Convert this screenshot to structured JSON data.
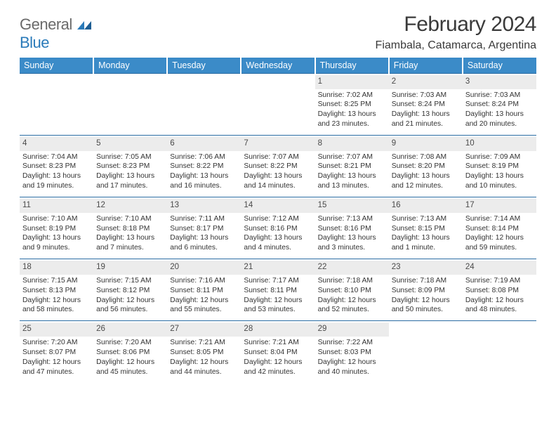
{
  "logo": {
    "text_general": "General",
    "text_blue": "Blue"
  },
  "title": "February 2024",
  "location": "Fiambala, Catamarca, Argentina",
  "weekdays": [
    "Sunday",
    "Monday",
    "Tuesday",
    "Wednesday",
    "Thursday",
    "Friday",
    "Saturday"
  ],
  "colors": {
    "header_bg": "#3b8bc8",
    "header_text": "#ffffff",
    "daynum_bg": "#ececec",
    "text": "#333333",
    "rule": "#2a6ca3",
    "logo_gray": "#6a6a6a",
    "logo_blue": "#2a7ab9"
  },
  "weeks": [
    [
      null,
      null,
      null,
      null,
      {
        "n": "1",
        "sr": "Sunrise: 7:02 AM",
        "ss": "Sunset: 8:25 PM",
        "d1": "Daylight: 13 hours",
        "d2": "and 23 minutes."
      },
      {
        "n": "2",
        "sr": "Sunrise: 7:03 AM",
        "ss": "Sunset: 8:24 PM",
        "d1": "Daylight: 13 hours",
        "d2": "and 21 minutes."
      },
      {
        "n": "3",
        "sr": "Sunrise: 7:03 AM",
        "ss": "Sunset: 8:24 PM",
        "d1": "Daylight: 13 hours",
        "d2": "and 20 minutes."
      }
    ],
    [
      {
        "n": "4",
        "sr": "Sunrise: 7:04 AM",
        "ss": "Sunset: 8:23 PM",
        "d1": "Daylight: 13 hours",
        "d2": "and 19 minutes."
      },
      {
        "n": "5",
        "sr": "Sunrise: 7:05 AM",
        "ss": "Sunset: 8:23 PM",
        "d1": "Daylight: 13 hours",
        "d2": "and 17 minutes."
      },
      {
        "n": "6",
        "sr": "Sunrise: 7:06 AM",
        "ss": "Sunset: 8:22 PM",
        "d1": "Daylight: 13 hours",
        "d2": "and 16 minutes."
      },
      {
        "n": "7",
        "sr": "Sunrise: 7:07 AM",
        "ss": "Sunset: 8:22 PM",
        "d1": "Daylight: 13 hours",
        "d2": "and 14 minutes."
      },
      {
        "n": "8",
        "sr": "Sunrise: 7:07 AM",
        "ss": "Sunset: 8:21 PM",
        "d1": "Daylight: 13 hours",
        "d2": "and 13 minutes."
      },
      {
        "n": "9",
        "sr": "Sunrise: 7:08 AM",
        "ss": "Sunset: 8:20 PM",
        "d1": "Daylight: 13 hours",
        "d2": "and 12 minutes."
      },
      {
        "n": "10",
        "sr": "Sunrise: 7:09 AM",
        "ss": "Sunset: 8:19 PM",
        "d1": "Daylight: 13 hours",
        "d2": "and 10 minutes."
      }
    ],
    [
      {
        "n": "11",
        "sr": "Sunrise: 7:10 AM",
        "ss": "Sunset: 8:19 PM",
        "d1": "Daylight: 13 hours",
        "d2": "and 9 minutes."
      },
      {
        "n": "12",
        "sr": "Sunrise: 7:10 AM",
        "ss": "Sunset: 8:18 PM",
        "d1": "Daylight: 13 hours",
        "d2": "and 7 minutes."
      },
      {
        "n": "13",
        "sr": "Sunrise: 7:11 AM",
        "ss": "Sunset: 8:17 PM",
        "d1": "Daylight: 13 hours",
        "d2": "and 6 minutes."
      },
      {
        "n": "14",
        "sr": "Sunrise: 7:12 AM",
        "ss": "Sunset: 8:16 PM",
        "d1": "Daylight: 13 hours",
        "d2": "and 4 minutes."
      },
      {
        "n": "15",
        "sr": "Sunrise: 7:13 AM",
        "ss": "Sunset: 8:16 PM",
        "d1": "Daylight: 13 hours",
        "d2": "and 3 minutes."
      },
      {
        "n": "16",
        "sr": "Sunrise: 7:13 AM",
        "ss": "Sunset: 8:15 PM",
        "d1": "Daylight: 13 hours",
        "d2": "and 1 minute."
      },
      {
        "n": "17",
        "sr": "Sunrise: 7:14 AM",
        "ss": "Sunset: 8:14 PM",
        "d1": "Daylight: 12 hours",
        "d2": "and 59 minutes."
      }
    ],
    [
      {
        "n": "18",
        "sr": "Sunrise: 7:15 AM",
        "ss": "Sunset: 8:13 PM",
        "d1": "Daylight: 12 hours",
        "d2": "and 58 minutes."
      },
      {
        "n": "19",
        "sr": "Sunrise: 7:15 AM",
        "ss": "Sunset: 8:12 PM",
        "d1": "Daylight: 12 hours",
        "d2": "and 56 minutes."
      },
      {
        "n": "20",
        "sr": "Sunrise: 7:16 AM",
        "ss": "Sunset: 8:11 PM",
        "d1": "Daylight: 12 hours",
        "d2": "and 55 minutes."
      },
      {
        "n": "21",
        "sr": "Sunrise: 7:17 AM",
        "ss": "Sunset: 8:11 PM",
        "d1": "Daylight: 12 hours",
        "d2": "and 53 minutes."
      },
      {
        "n": "22",
        "sr": "Sunrise: 7:18 AM",
        "ss": "Sunset: 8:10 PM",
        "d1": "Daylight: 12 hours",
        "d2": "and 52 minutes."
      },
      {
        "n": "23",
        "sr": "Sunrise: 7:18 AM",
        "ss": "Sunset: 8:09 PM",
        "d1": "Daylight: 12 hours",
        "d2": "and 50 minutes."
      },
      {
        "n": "24",
        "sr": "Sunrise: 7:19 AM",
        "ss": "Sunset: 8:08 PM",
        "d1": "Daylight: 12 hours",
        "d2": "and 48 minutes."
      }
    ],
    [
      {
        "n": "25",
        "sr": "Sunrise: 7:20 AM",
        "ss": "Sunset: 8:07 PM",
        "d1": "Daylight: 12 hours",
        "d2": "and 47 minutes."
      },
      {
        "n": "26",
        "sr": "Sunrise: 7:20 AM",
        "ss": "Sunset: 8:06 PM",
        "d1": "Daylight: 12 hours",
        "d2": "and 45 minutes."
      },
      {
        "n": "27",
        "sr": "Sunrise: 7:21 AM",
        "ss": "Sunset: 8:05 PM",
        "d1": "Daylight: 12 hours",
        "d2": "and 44 minutes."
      },
      {
        "n": "28",
        "sr": "Sunrise: 7:21 AM",
        "ss": "Sunset: 8:04 PM",
        "d1": "Daylight: 12 hours",
        "d2": "and 42 minutes."
      },
      {
        "n": "29",
        "sr": "Sunrise: 7:22 AM",
        "ss": "Sunset: 8:03 PM",
        "d1": "Daylight: 12 hours",
        "d2": "and 40 minutes."
      },
      null,
      null
    ]
  ]
}
